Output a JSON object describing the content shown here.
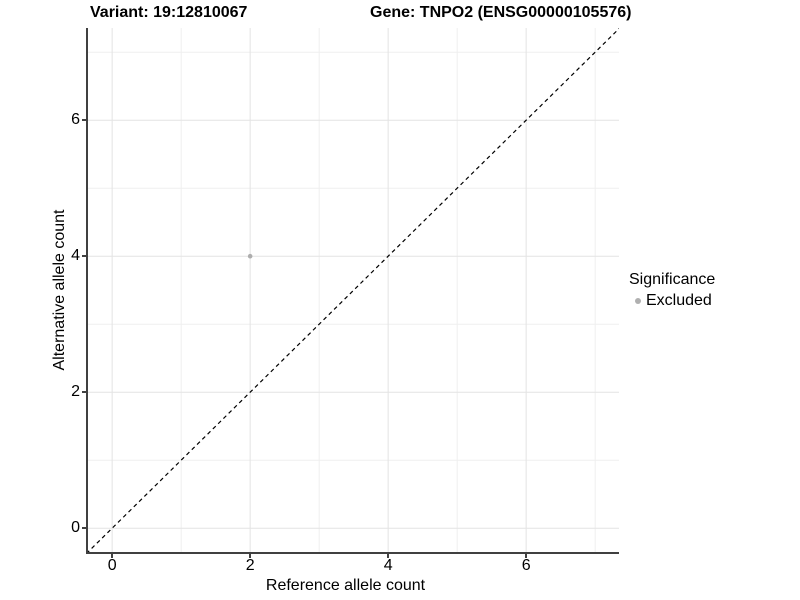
{
  "chart_data": {
    "type": "scatter",
    "titles": {
      "left": "Variant: 19:12810067",
      "right": "Gene: TNPO2 (ENSG00000105576)"
    },
    "xlabel": "Reference allele count",
    "ylabel": "Alternative allele count",
    "xlim": [
      -0.35,
      7.35
    ],
    "ylim": [
      -0.35,
      7.35
    ],
    "x_ticks": [
      0,
      2,
      4,
      6
    ],
    "y_ticks": [
      0,
      2,
      4,
      6
    ],
    "x_minor_gridlines": [
      1,
      3,
      5,
      7
    ],
    "y_minor_gridlines": [
      1,
      3,
      5,
      7
    ],
    "grid": true,
    "points": [
      {
        "x": 2,
        "y": 4,
        "series": "Excluded"
      }
    ],
    "reference_line": {
      "slope": 1,
      "intercept": 0,
      "style": "dashed",
      "color": "#000000"
    },
    "legend": {
      "title": "Significance",
      "position": "right",
      "entries": [
        {
          "label": "Excluded",
          "color": "#b0b0b0"
        }
      ]
    },
    "colors": {
      "background": "#ffffff",
      "point": "#aeaeae",
      "axis_line": "#404040",
      "grid_major": "#e3e3e3",
      "grid_minor": "#efefef",
      "text": "#000000"
    }
  }
}
